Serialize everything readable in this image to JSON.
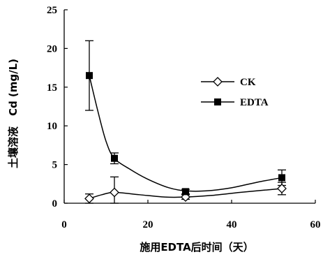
{
  "chart_data": {
    "type": "line",
    "xlabel": "施用EDTA后时间（天）",
    "ylabel": "土壤溶液　Cd (mg/L)",
    "xlim": [
      0,
      60
    ],
    "ylim": [
      0,
      25
    ],
    "xticks": [
      0,
      20,
      40,
      60
    ],
    "yticks": [
      0,
      5,
      10,
      15,
      20,
      25
    ],
    "grid": false,
    "legend_position": "right",
    "series": [
      {
        "name": "CK",
        "marker": "open-diamond",
        "color": "#000000",
        "points": [
          {
            "x": 6,
            "y": 0.6,
            "err": 0.6
          },
          {
            "x": 12,
            "y": 1.4,
            "err": 2.0
          },
          {
            "x": 29,
            "y": 0.8,
            "err": 0.3
          },
          {
            "x": 52,
            "y": 1.9,
            "err": 0.8
          }
        ],
        "smooth_curve": [
          [
            6,
            0.6
          ],
          [
            9,
            1.1
          ],
          [
            12,
            1.4
          ],
          [
            18,
            1.1
          ],
          [
            24,
            0.8
          ],
          [
            29,
            0.8
          ],
          [
            35,
            1.0
          ],
          [
            42,
            1.4
          ],
          [
            48,
            1.7
          ],
          [
            52,
            1.9
          ]
        ]
      },
      {
        "name": "EDTA",
        "marker": "filled-square",
        "color": "#000000",
        "points": [
          {
            "x": 6,
            "y": 16.5,
            "err": 4.5
          },
          {
            "x": 12,
            "y": 5.8,
            "err": 0.7
          },
          {
            "x": 29,
            "y": 1.5,
            "err": 0.3
          },
          {
            "x": 52,
            "y": 3.3,
            "err": 1.0
          }
        ],
        "smooth_curve": [
          [
            6,
            16.5
          ],
          [
            8,
            12.0
          ],
          [
            10,
            8.0
          ],
          [
            12,
            5.8
          ],
          [
            16,
            4.3
          ],
          [
            20,
            3.1
          ],
          [
            25,
            2.0
          ],
          [
            29,
            1.6
          ],
          [
            34,
            1.6
          ],
          [
            40,
            2.0
          ],
          [
            46,
            2.7
          ],
          [
            52,
            3.3
          ]
        ]
      }
    ]
  }
}
